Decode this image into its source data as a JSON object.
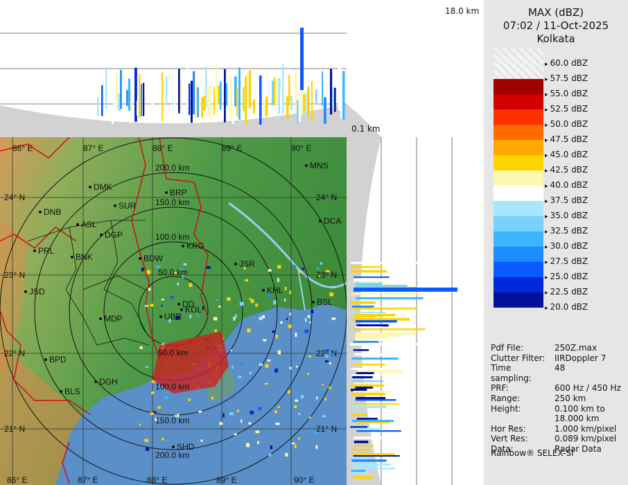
{
  "header": {
    "title": "MAX (dBZ)",
    "datetime": "07:02 / 11-Oct-2025",
    "station": "Kolkata"
  },
  "height_labels": {
    "top": "18.0 km",
    "bottom": "0.1 km"
  },
  "legend": [
    {
      "label": "60.0 dBZ",
      "color": ""
    },
    {
      "label": "57.5 dBZ",
      "color": ""
    },
    {
      "label": "55.0 dBZ",
      "color": "#a00000"
    },
    {
      "label": "52.5 dBZ",
      "color": "#d40000"
    },
    {
      "label": "50.0 dBZ",
      "color": "#ff3000"
    },
    {
      "label": "47.5 dBZ",
      "color": "#ff6a00"
    },
    {
      "label": "45.0 dBZ",
      "color": "#ffa800"
    },
    {
      "label": "42.5 dBZ",
      "color": "#ffd400"
    },
    {
      "label": "40.0 dBZ",
      "color": "#fff6b0"
    },
    {
      "label": "37.5 dBZ",
      "color": "#ffffff"
    },
    {
      "label": "35.0 dBZ",
      "color": "#a8e6ff"
    },
    {
      "label": "32.5 dBZ",
      "color": "#78d2ff"
    },
    {
      "label": "30.0 dBZ",
      "color": "#3cb4ff"
    },
    {
      "label": "27.5 dBZ",
      "color": "#1e8cff"
    },
    {
      "label": "25.0 dBZ",
      "color": "#0a5aff"
    },
    {
      "label": "22.5 dBZ",
      "color": "#0028dc"
    },
    {
      "label": "20.0 dBZ",
      "color": "#00129c"
    }
  ],
  "info": [
    {
      "key": "Pdf File:",
      "value": "250Z.max"
    },
    {
      "key": "Clutter Filter:",
      "value": "IIRDoppler 7"
    },
    {
      "key": "Time sampling:",
      "value": "48"
    },
    {
      "key": "PRF:",
      "value": "600 Hz / 450 Hz"
    },
    {
      "key": "Range:",
      "value": "250 km"
    },
    {
      "key": "Height:",
      "value": "0.100 km to\n18.000 km"
    },
    {
      "key": "Hor Res:",
      "value": "1.000 km/pixel"
    },
    {
      "key": "Vert Res:",
      "value": "0.089 km/pixel"
    },
    {
      "key": "Data:",
      "value": "Radar Data"
    }
  ],
  "footer": "Rainbow® SELEX-SI",
  "map": {
    "lon_labels": [
      "86° E",
      "87° E",
      "88° E",
      "89° E",
      "90° E"
    ],
    "lat_labels": [
      "24° N",
      "23° N",
      "22° N",
      "21° N"
    ],
    "range_labels": [
      "50.0 km",
      "100.0 km",
      "150.0 km",
      "200.0 km"
    ],
    "lower_range_labels": [
      "50.0 km",
      "100.0 km",
      "150.0 km",
      "200.0 km"
    ],
    "cities": [
      "MNS",
      "DMK",
      "BRP",
      "SUR",
      "DNB",
      "ASL",
      "DGP",
      "DCA",
      "KRG",
      "PRL",
      "BNK",
      "BDW",
      "JSR",
      "KHL",
      "BSL",
      "JSD",
      "DD",
      "MDP",
      "UBR",
      "KOL",
      "BPD",
      "DGH",
      "BLS",
      "SHD"
    ]
  }
}
